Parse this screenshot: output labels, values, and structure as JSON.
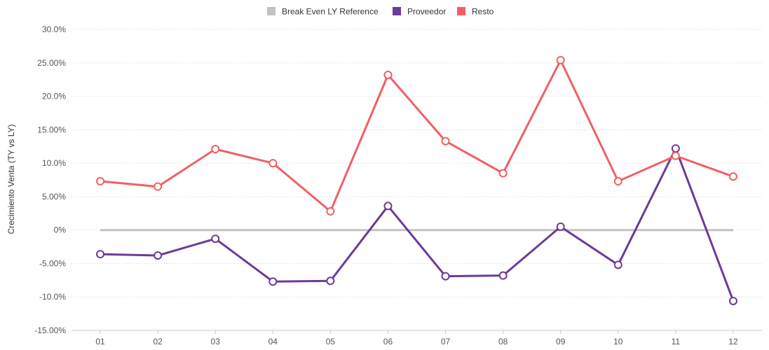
{
  "chart_data": {
    "type": "line",
    "title": "",
    "xlabel": "",
    "ylabel": "Crecimiento Venta (TY vs LY)",
    "categories": [
      "01",
      "02",
      "03",
      "04",
      "05",
      "06",
      "07",
      "08",
      "09",
      "10",
      "11",
      "12"
    ],
    "ylim": [
      -15,
      30
    ],
    "yticks": [
      -15,
      -10,
      -5,
      0,
      5,
      10,
      15,
      20,
      25,
      30
    ],
    "ytick_labels": [
      "-15.00%",
      "-10.0%",
      "-5.00%",
      "0%",
      "5.00%",
      "10.0%",
      "15.00%",
      "20.0%",
      "25.00%",
      "30.0%"
    ],
    "grid": true,
    "legend_position": "top-center",
    "series": [
      {
        "name": "Break Even LY Reference",
        "color": "#c3c3c3",
        "markers": false,
        "values": [
          0,
          0,
          0,
          0,
          0,
          0,
          0,
          0,
          0,
          0,
          0,
          0
        ]
      },
      {
        "name": "Proveedor",
        "color": "#6a3b98",
        "markers": true,
        "values": [
          -3.6,
          -3.8,
          -1.3,
          -7.7,
          -7.6,
          3.6,
          -6.9,
          -6.8,
          0.5,
          -5.2,
          12.2,
          -10.6
        ]
      },
      {
        "name": "Resto",
        "color": "#f25f63",
        "markers": true,
        "values": [
          7.3,
          6.5,
          12.1,
          10.0,
          2.8,
          23.2,
          13.3,
          8.5,
          25.4,
          7.3,
          11.1,
          8.0
        ]
      }
    ]
  }
}
